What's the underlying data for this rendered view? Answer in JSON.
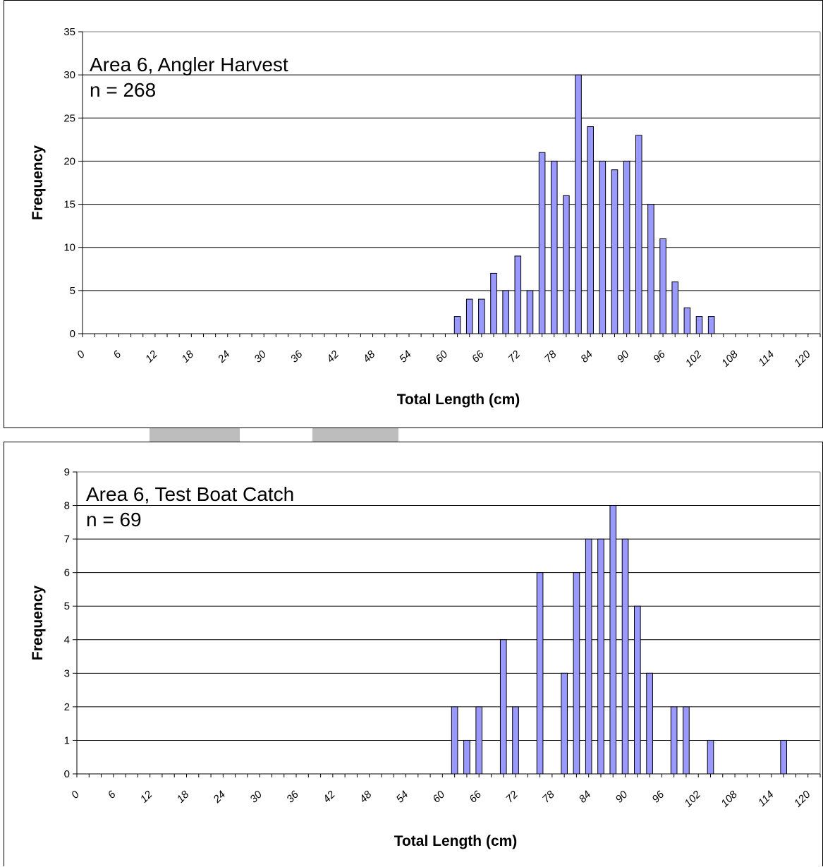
{
  "chart_data": [
    {
      "type": "bar",
      "annotation_lines": [
        "Area 6, Angler Harvest",
        "n = 268"
      ],
      "xlabel": "Total Length (cm)",
      "ylabel": "Frequency",
      "ylim": [
        0,
        35
      ],
      "yticks": [
        "0",
        "5",
        "10",
        "15",
        "20",
        "25",
        "30",
        "35"
      ],
      "xlim": [
        0,
        122
      ],
      "xtick_labels": [
        "0",
        "6",
        "12",
        "18",
        "24",
        "30",
        "36",
        "42",
        "48",
        "54",
        "60",
        "66",
        "72",
        "78",
        "84",
        "90",
        "96",
        "102",
        "108",
        "114",
        "120"
      ],
      "grid": "horizontal",
      "bar_color": "#9999ff",
      "x": [
        62,
        64,
        66,
        68,
        70,
        72,
        74,
        76,
        78,
        80,
        82,
        84,
        86,
        88,
        90,
        92,
        94,
        96,
        98,
        100,
        102,
        104
      ],
      "values": [
        2,
        4,
        4,
        7,
        5,
        9,
        5,
        21,
        20,
        16,
        30,
        24,
        20,
        19,
        20,
        23,
        15,
        11,
        6,
        3,
        2,
        2
      ]
    },
    {
      "type": "bar",
      "annotation_lines": [
        "Area 6, Test Boat Catch",
        "n = 69"
      ],
      "xlabel": "Total Length (cm)",
      "ylabel": "Frequency",
      "ylim": [
        0,
        9
      ],
      "yticks": [
        "0",
        "1",
        "2",
        "3",
        "4",
        "5",
        "6",
        "7",
        "8",
        "9"
      ],
      "xlim": [
        0,
        122
      ],
      "xtick_labels": [
        "0",
        "6",
        "12",
        "18",
        "24",
        "30",
        "36",
        "42",
        "48",
        "54",
        "60",
        "66",
        "72",
        "78",
        "84",
        "90",
        "96",
        "102",
        "108",
        "114",
        "120"
      ],
      "grid": "horizontal",
      "bar_color": "#9999ff",
      "x": [
        62,
        64,
        66,
        70,
        72,
        76,
        80,
        82,
        84,
        86,
        88,
        90,
        92,
        94,
        98,
        100,
        104,
        116
      ],
      "values": [
        2,
        1,
        2,
        4,
        2,
        6,
        3,
        6,
        7,
        7,
        8,
        7,
        5,
        3,
        2,
        2,
        1,
        1
      ]
    }
  ]
}
